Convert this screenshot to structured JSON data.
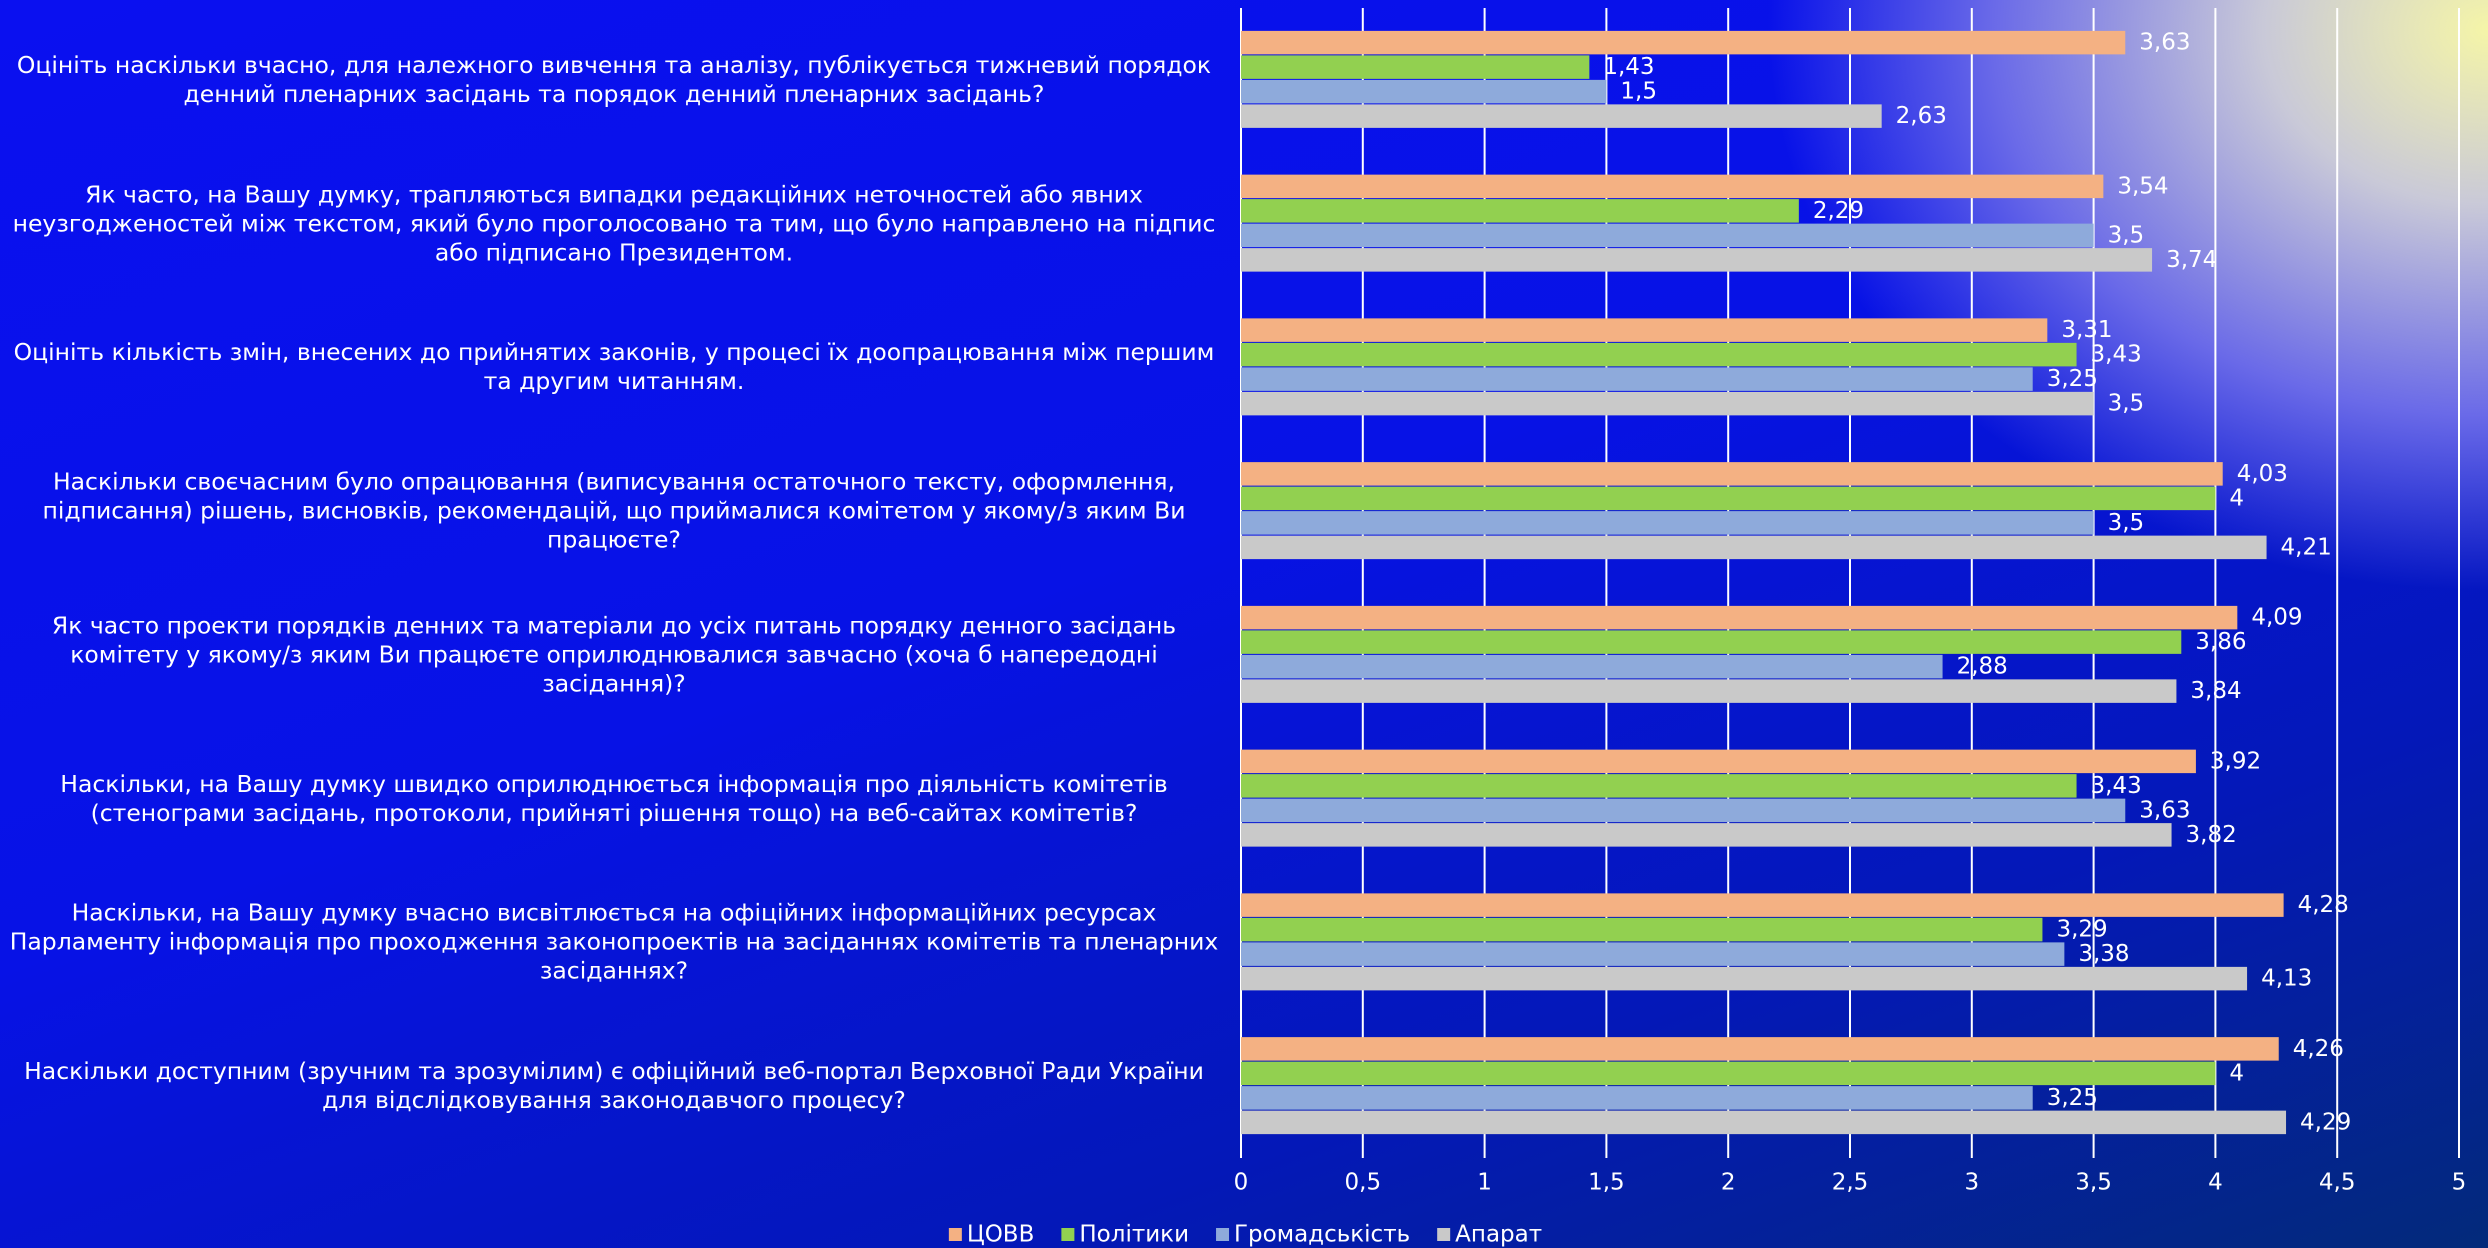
{
  "chart_data": {
    "type": "bar",
    "orientation": "horizontal",
    "categories": [
      "Оцініть наскільки вчасно, для належного вивчення та аналізу, публікується тижневий порядок денний пленарних засідань та порядок денний пленарних засідань?",
      "Як часто, на Вашу думку, трапляються випадки редакційних неточностей або явних неузгодженостей між текстом, який було проголосовано та тим, що було направлено на підпис або підписано Президентом.",
      "Оцініть кількість змін, внесених до прийнятих законів, у процесі їх доопрацювання між першим та другим читанням.",
      "Наскільки своєчасним було опрацювання (виписування остаточного тексту, оформлення, підписання) рішень, висновків, рекомендацій, що приймалися комітетом у якому/з яким Ви працюєте?",
      "Як часто проекти порядків денних та матеріали до усіх питань порядку денного засідань комітету у якому/з яким Ви працюєте оприлюднювалися завчасно (хоча б напередодні засідання)?",
      "Наскільки, на Вашу думку швидко оприлюднюється інформація про діяльність комітетів (стенограми засідань, протоколи, прийняті рішення тощо) на веб-сайтах комітетів?",
      "Наскільки, на Вашу думку вчасно висвітлюється на офіційних інформаційних ресурсах Парламенту інформація про проходження законопроектів на засіданнях комітетів та пленарних засіданнях?",
      "Наскільки доступним (зручним та зрозумілим) є офіційний веб-портал Верховної Ради України для відслідковування законодавчого процесу?"
    ],
    "series": [
      {
        "name": "ЦОВВ",
        "color": "#f4b183",
        "values": [
          3.63,
          3.54,
          3.31,
          4.03,
          4.09,
          3.92,
          4.28,
          4.26
        ],
        "value_labels": [
          "3,63",
          "3,54",
          "3,31",
          "4,03",
          "4,09",
          "3,92",
          "4,28",
          "4,26"
        ]
      },
      {
        "name": "Політики",
        "color": "#92d050",
        "values": [
          1.43,
          2.29,
          3.43,
          4,
          3.86,
          3.43,
          3.29,
          4
        ],
        "value_labels": [
          "1,43",
          "2,29",
          "3,43",
          "4",
          "3,86",
          "3,43",
          "3,29",
          "4"
        ]
      },
      {
        "name": "Громадськість",
        "color": "#8eaadb",
        "values": [
          1.5,
          3.5,
          3.25,
          3.5,
          2.88,
          3.63,
          3.38,
          3.25
        ],
        "value_labels": [
          "1,5",
          "3,5",
          "3,25",
          "3,5",
          "2,88",
          "3,63",
          "3,38",
          "3,25"
        ]
      },
      {
        "name": "Апарат",
        "color": "#c9c9c9",
        "values": [
          2.63,
          3.74,
          3.5,
          4.21,
          3.84,
          3.82,
          4.13,
          4.29
        ],
        "value_labels": [
          "2,63",
          "3,74",
          "3,5",
          "4,21",
          "3,84",
          "3,82",
          "4,13",
          "4,29"
        ]
      }
    ],
    "xlim": [
      0,
      5
    ],
    "xticks": [
      0,
      {
        "value": 0.5,
        "label": "0,5"
      },
      1,
      {
        "value": 1.5,
        "label": "1,5"
      },
      2,
      {
        "value": 2.5,
        "label": "2,5"
      },
      3,
      {
        "value": 3.5,
        "label": "3,5"
      },
      4,
      {
        "value": 4.5,
        "label": "4,5"
      },
      5
    ],
    "grid": true,
    "legend": "bottom"
  }
}
